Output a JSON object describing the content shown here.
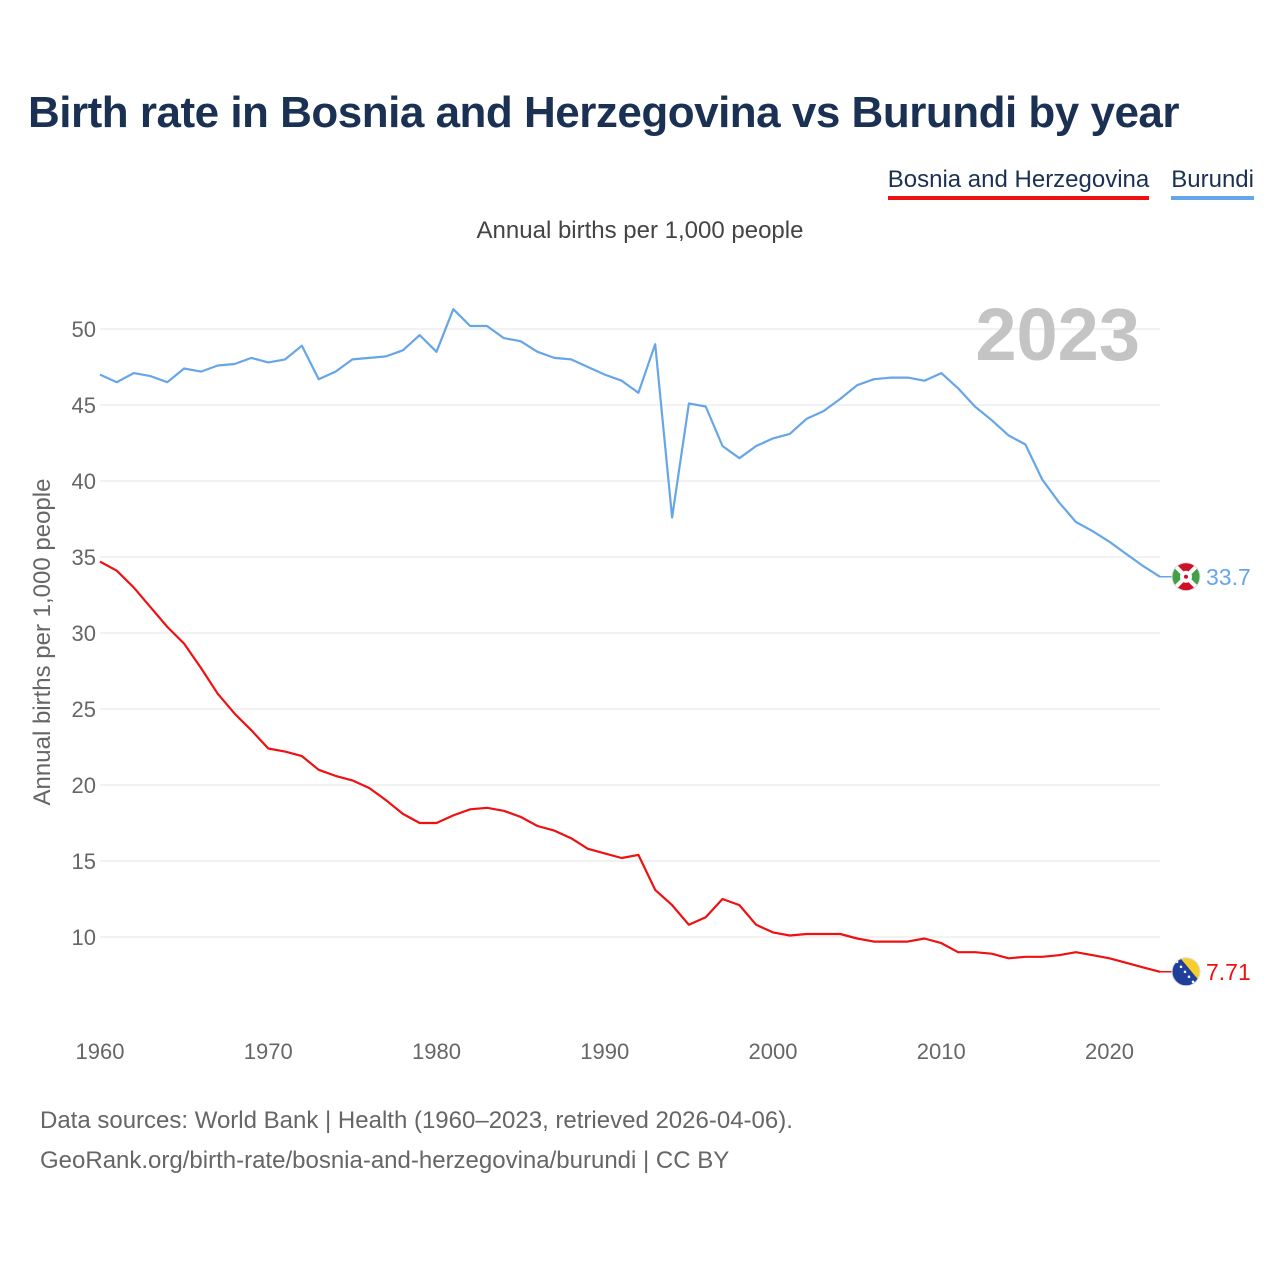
{
  "title": "Birth rate in Bosnia and Herzegovina vs Burundi by year",
  "subtitle": "Annual births per 1,000 people",
  "year_watermark": "2023",
  "footer": {
    "sources": "Data sources: World Bank | Health (1960–2023, retrieved 2026-04-06).",
    "url": "GeoRank.org/birth-rate/bosnia-and-herzegovina/burundi | CC BY"
  },
  "colors": {
    "bih": "#ee1111",
    "bdi": "#66a6e8",
    "title": "#1b3153",
    "grid": "#e6e6e6"
  },
  "chart_data": {
    "type": "line",
    "title": "Birth rate in Bosnia and Herzegovina vs Burundi by year",
    "xlabel": "",
    "ylabel": "Annual births per 1,000 people",
    "xlim": [
      1960,
      2023
    ],
    "ylim": [
      5,
      52
    ],
    "xticks": [
      1960,
      1970,
      1980,
      1990,
      2000,
      2010,
      2020
    ],
    "yticks": [
      10,
      15,
      20,
      25,
      30,
      35,
      40,
      45,
      50
    ],
    "grid": true,
    "legend": "top-right",
    "x": [
      1960,
      1961,
      1962,
      1963,
      1964,
      1965,
      1966,
      1967,
      1968,
      1969,
      1970,
      1971,
      1972,
      1973,
      1974,
      1975,
      1976,
      1977,
      1978,
      1979,
      1980,
      1981,
      1982,
      1983,
      1984,
      1985,
      1986,
      1987,
      1988,
      1989,
      1990,
      1991,
      1992,
      1993,
      1994,
      1995,
      1996,
      1997,
      1998,
      1999,
      2000,
      2001,
      2002,
      2003,
      2004,
      2005,
      2006,
      2007,
      2008,
      2009,
      2010,
      2011,
      2012,
      2013,
      2014,
      2015,
      2016,
      2017,
      2018,
      2019,
      2020,
      2021,
      2022,
      2023
    ],
    "series": [
      {
        "name": "Bosnia and Herzegovina",
        "color": "#ee1111",
        "end_label": "7.71",
        "flag": "bosnia-flag-icon",
        "values": [
          34.7,
          34.1,
          33.0,
          31.7,
          30.4,
          29.3,
          27.7,
          26.0,
          24.7,
          23.6,
          22.4,
          22.2,
          21.9,
          21.0,
          20.6,
          20.3,
          19.8,
          19.0,
          18.1,
          17.5,
          17.5,
          18.0,
          18.4,
          18.5,
          18.3,
          17.9,
          17.3,
          17.0,
          16.5,
          15.8,
          15.5,
          15.2,
          15.4,
          13.1,
          12.1,
          10.8,
          11.3,
          12.5,
          12.1,
          10.8,
          10.3,
          10.1,
          10.2,
          10.2,
          10.2,
          9.9,
          9.7,
          9.7,
          9.7,
          9.9,
          9.6,
          9.0,
          9.0,
          8.9,
          8.6,
          8.7,
          8.7,
          8.8,
          9.0,
          8.8,
          8.6,
          8.3,
          8.0,
          7.71
        ]
      },
      {
        "name": "Burundi",
        "color": "#66a6e8",
        "end_label": "33.7",
        "flag": "burundi-flag-icon",
        "values": [
          47.0,
          46.5,
          47.1,
          46.9,
          46.5,
          47.4,
          47.2,
          47.6,
          47.7,
          48.1,
          47.8,
          48.0,
          48.9,
          46.7,
          47.2,
          48.0,
          48.1,
          48.2,
          48.6,
          49.6,
          48.5,
          51.3,
          50.2,
          50.2,
          49.4,
          49.2,
          48.5,
          48.1,
          48.0,
          47.5,
          47.0,
          46.6,
          45.8,
          49.0,
          37.6,
          45.1,
          44.9,
          42.3,
          41.5,
          42.3,
          42.8,
          43.1,
          44.1,
          44.6,
          45.4,
          46.3,
          46.7,
          46.8,
          46.8,
          46.6,
          47.1,
          46.1,
          44.9,
          44.0,
          43.0,
          42.4,
          40.1,
          38.6,
          37.3,
          36.7,
          36.0,
          35.2,
          34.4,
          33.7
        ]
      }
    ]
  }
}
